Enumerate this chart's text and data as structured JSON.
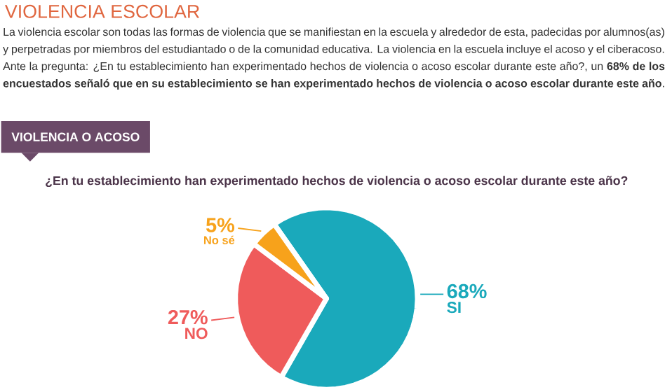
{
  "chart_data": {
    "type": "pie",
    "title": "VIOLENCIA ESCOLAR",
    "subtitle": "La violencia escolar son todas las formas de violencia que se manifiestan en la escuela y alrededor de esta, padecidas por alumnos(as) y perpetradas por miembros del estudiantado o de la comunidad educativa. La violencia en la escuela incluye el acoso y el ciberacoso. Ante la pregunta: ¿En tu establecimiento han experimentado hechos de violencia o acoso escolar durante este año?, un **68% de los encuestados señaló que en su establecimiento se han experimentado hechos de violencia o acoso escolar durante este año**.",
    "annotations": [
      "VIOLENCIA O ACOSO",
      "¿En tu establecimiento han experimentado hechos de violencia o acoso escolar durante este año?"
    ],
    "categories": [
      "SI",
      "NO",
      "No sé"
    ],
    "values": [
      68,
      27,
      5
    ],
    "colors": [
      "#1aa9bb",
      "#ef5b5b",
      "#f7a21b"
    ],
    "value_labels": [
      "68%",
      "27%",
      "5%"
    ]
  }
}
